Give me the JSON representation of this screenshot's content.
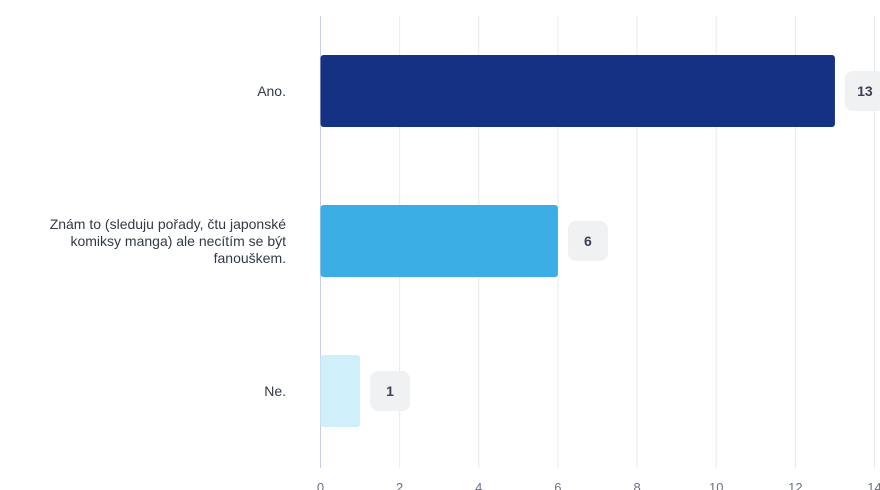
{
  "chart_data": {
    "type": "bar",
    "orientation": "horizontal",
    "categories": [
      "Ano.",
      "Znám to (sleduju pořady, čtu japonské komiksy manga) ale necítím se být fanouškem.",
      "Ne."
    ],
    "category_label_lines": [
      [
        "Ano."
      ],
      [
        "Znám to (sleduju pořady, čtu japonské",
        "komiksy manga) ale necítím se být",
        "fanouškem."
      ],
      [
        "Ne."
      ]
    ],
    "values": [
      13,
      6,
      1
    ],
    "value_labels": [
      "13",
      "6",
      "1"
    ],
    "bar_colors": [
      "#143184",
      "#3baee6",
      "#cfeffa"
    ],
    "xlim": [
      0,
      14
    ],
    "x_ticks": [
      0,
      2,
      4,
      6,
      8,
      10,
      12,
      14
    ],
    "grid": true,
    "title": "",
    "xlabel": "",
    "ylabel": ""
  }
}
